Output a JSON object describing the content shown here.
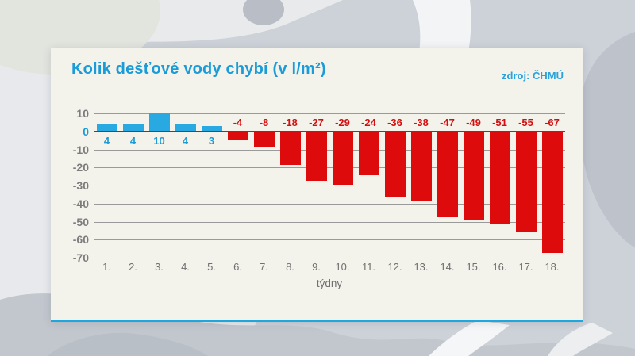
{
  "chart_data": {
    "type": "bar",
    "title": "Kolik dešťové vody chybí (v l/m²)",
    "source": "zdroj: ČHMÚ",
    "categories": [
      "1.",
      "2.",
      "3.",
      "4.",
      "5.",
      "6.",
      "7.",
      "8.",
      "9.",
      "10.",
      "11.",
      "12.",
      "13.",
      "14.",
      "15.",
      "16.",
      "17.",
      "18."
    ],
    "values": [
      4,
      4,
      10,
      4,
      3,
      -4,
      -8,
      -18,
      -27,
      -29,
      -24,
      -36,
      -38,
      -47,
      -49,
      -51,
      -55,
      -67
    ],
    "xlabel": "týdny",
    "ylabel": "",
    "ylim": [
      -70,
      10
    ],
    "yticks": [
      10,
      0,
      -10,
      -20,
      -30,
      -40,
      -50,
      -60,
      -70
    ],
    "grid": true,
    "legend": "none",
    "value_labels": true,
    "colors": {
      "positive_bar": "#29a9e1",
      "negative_bar": "#dd0b0b",
      "positive_value_label": "#1b9cd8",
      "negative_value_label": "#d40f0f",
      "title": "#1b9cd8",
      "source": "#2aa3dd",
      "zero_tick_label": "#1b9cd8",
      "tick_label": "#7c7c7c",
      "gridline": "#9a9a9a",
      "zero_line": "#4a4a4a",
      "card_background": "#f3f2eb",
      "card_accent_line": "#1ca7e0"
    }
  }
}
